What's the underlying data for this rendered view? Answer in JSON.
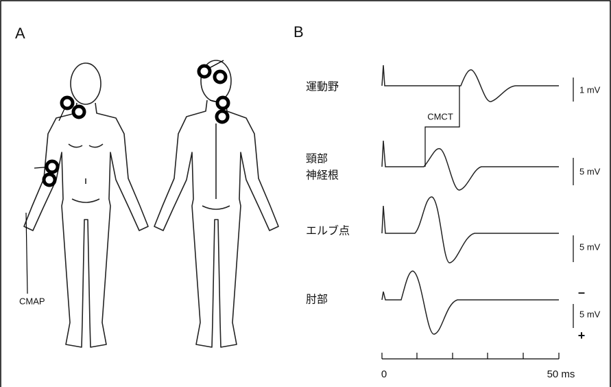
{
  "panel_a": {
    "label": "A",
    "cmap_label": "CMAP"
  },
  "panel_b": {
    "label": "B",
    "traces": [
      {
        "label_lines": [
          "運動野"
        ],
        "scale": "1 mV"
      },
      {
        "label_lines": [
          "頸部",
          "神経根"
        ],
        "scale": "5 mV"
      },
      {
        "label_lines": [
          "エルブ点"
        ],
        "scale": "5 mV"
      },
      {
        "label_lines": [
          "肘部"
        ],
        "scale": "5 mV"
      }
    ],
    "cmct_label": "CMCT",
    "polarity": {
      "minus": "–",
      "plus": "+"
    },
    "time_axis": {
      "start": "0",
      "end": "50 ms"
    }
  }
}
